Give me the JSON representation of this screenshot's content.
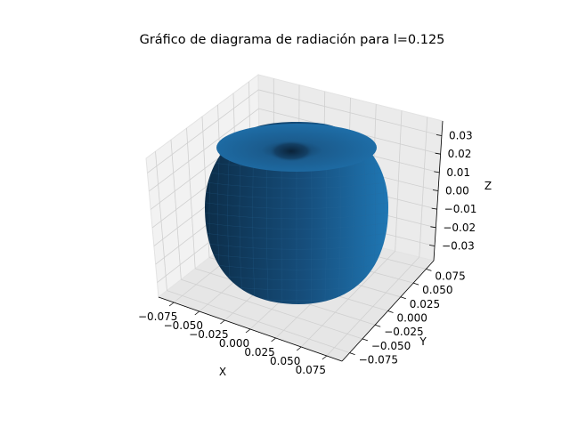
{
  "chart_data": {
    "type": "surface3d",
    "title": "Gráfico de diagrama de radiación para l=0.125",
    "xlabel": "X",
    "ylabel": "Y",
    "zlabel": "Z",
    "x_ticks": [
      "−0.075",
      "−0.050",
      "−0.025",
      "0.000",
      "0.025",
      "0.050",
      "0.075"
    ],
    "y_ticks": [
      "−0.075",
      "−0.050",
      "−0.025",
      "0.000",
      "0.025",
      "0.050",
      "0.075"
    ],
    "z_ticks": [
      "−0.03",
      "−0.02",
      "−0.01",
      "0.00",
      "0.01",
      "0.02",
      "0.03"
    ],
    "xlim": [
      -0.09,
      0.09
    ],
    "ylim": [
      -0.09,
      0.09
    ],
    "zlim": [
      -0.038,
      0.038
    ],
    "surface": {
      "shape": "toroidal radiation pattern (donut with dimple at top)",
      "color": "#1f77b4",
      "x_range": [
        -0.075,
        0.075
      ],
      "y_range": [
        -0.075,
        0.075
      ],
      "z_range": [
        -0.035,
        0.035
      ]
    },
    "grid": true,
    "pane_color": "#f2f2f2"
  }
}
